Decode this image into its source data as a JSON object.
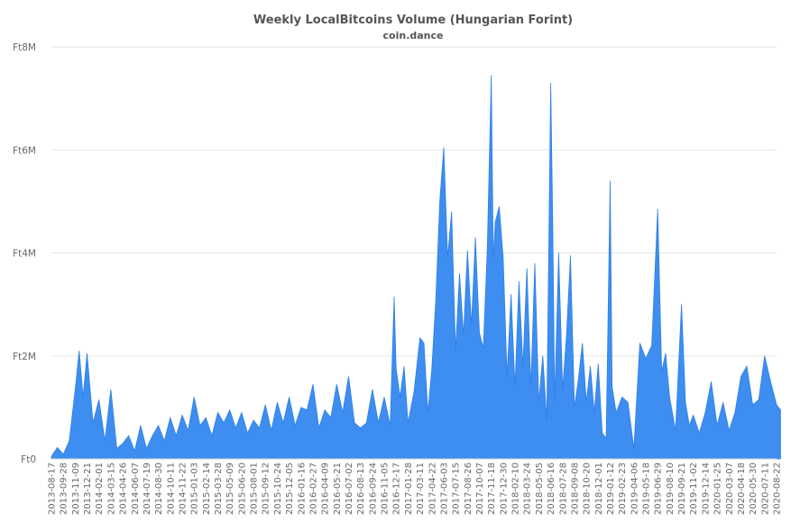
{
  "chart_data": {
    "type": "area",
    "title": "Weekly LocalBitcoins Volume (Hungarian Forint)",
    "subtitle": "coin.dance",
    "xlabel": "",
    "ylabel": "",
    "ylim": [
      0,
      8000000
    ],
    "grid": true,
    "y_ticks": [
      {
        "value": 0,
        "label": "Ft0"
      },
      {
        "value": 2000000,
        "label": "Ft2M"
      },
      {
        "value": 4000000,
        "label": "Ft4M"
      },
      {
        "value": 6000000,
        "label": "Ft6M"
      },
      {
        "value": 8000000,
        "label": "Ft8M"
      }
    ],
    "x_tick_labels": [
      "2013-08-17",
      "2013-09-28",
      "2013-11-09",
      "2013-12-21",
      "2014-02-01",
      "2014-03-15",
      "2014-04-26",
      "2014-06-07",
      "2014-07-19",
      "2014-08-30",
      "2014-10-11",
      "2014-11-22",
      "2015-01-03",
      "2015-02-14",
      "2015-03-28",
      "2015-05-09",
      "2015-06-20",
      "2015-08-01",
      "2015-09-12",
      "2015-10-24",
      "2015-12-05",
      "2016-01-16",
      "2016-02-27",
      "2016-04-09",
      "2016-05-21",
      "2016-07-02",
      "2016-08-13",
      "2016-09-24",
      "2016-11-05",
      "2016-12-17",
      "2017-01-28",
      "2017-03-11",
      "2017-04-22",
      "2017-06-03",
      "2017-07-15",
      "2017-08-26",
      "2017-10-07",
      "2017-11-18",
      "2017-12-30",
      "2018-02-10",
      "2018-03-24",
      "2018-05-05",
      "2018-06-16",
      "2018-07-28",
      "2018-09-08",
      "2018-10-20",
      "2018-12-01",
      "2019-01-12",
      "2019-02-23",
      "2019-04-06",
      "2019-05-18",
      "2019-06-29",
      "2019-08-10",
      "2019-09-21",
      "2019-11-02",
      "2019-12-14",
      "2020-01-25",
      "2020-03-07",
      "2020-04-18",
      "2020-05-30",
      "2020-07-11",
      "2020-08-22"
    ],
    "series": [
      {
        "color": "#3d8ef0",
        "x": [
          "2013-08-17",
          "2013-09-07",
          "2013-09-28",
          "2013-10-19",
          "2013-11-09",
          "2013-11-23",
          "2013-12-07",
          "2013-12-21",
          "2014-01-11",
          "2014-02-01",
          "2014-02-22",
          "2014-03-15",
          "2014-04-05",
          "2014-04-26",
          "2014-05-17",
          "2014-06-07",
          "2014-06-28",
          "2014-07-19",
          "2014-08-09",
          "2014-08-30",
          "2014-09-20",
          "2014-10-11",
          "2014-11-01",
          "2014-11-22",
          "2014-12-13",
          "2015-01-03",
          "2015-01-24",
          "2015-02-14",
          "2015-03-07",
          "2015-03-28",
          "2015-04-18",
          "2015-05-09",
          "2015-05-30",
          "2015-06-20",
          "2015-07-11",
          "2015-08-01",
          "2015-08-22",
          "2015-09-12",
          "2015-10-03",
          "2015-10-24",
          "2015-11-14",
          "2015-12-05",
          "2015-12-26",
          "2016-01-16",
          "2016-02-06",
          "2016-02-27",
          "2016-03-19",
          "2016-04-09",
          "2016-04-30",
          "2016-05-21",
          "2016-06-11",
          "2016-07-02",
          "2016-07-23",
          "2016-08-13",
          "2016-09-03",
          "2016-09-24",
          "2016-10-15",
          "2016-11-05",
          "2016-11-26",
          "2016-12-10",
          "2016-12-17",
          "2016-12-31",
          "2017-01-14",
          "2017-01-28",
          "2017-02-18",
          "2017-03-11",
          "2017-03-25",
          "2017-04-08",
          "2017-04-22",
          "2017-05-06",
          "2017-05-20",
          "2017-06-03",
          "2017-06-17",
          "2017-07-01",
          "2017-07-15",
          "2017-07-29",
          "2017-08-12",
          "2017-08-26",
          "2017-09-09",
          "2017-09-23",
          "2017-10-07",
          "2017-10-21",
          "2017-11-04",
          "2017-11-18",
          "2017-11-25",
          "2017-12-02",
          "2017-12-16",
          "2017-12-30",
          "2018-01-13",
          "2018-01-27",
          "2018-02-10",
          "2018-02-24",
          "2018-03-10",
          "2018-03-24",
          "2018-04-07",
          "2018-04-21",
          "2018-05-05",
          "2018-05-19",
          "2018-06-02",
          "2018-06-16",
          "2018-06-23",
          "2018-06-30",
          "2018-07-14",
          "2018-07-28",
          "2018-08-11",
          "2018-08-25",
          "2018-09-08",
          "2018-09-22",
          "2018-10-06",
          "2018-10-20",
          "2018-11-03",
          "2018-11-17",
          "2018-12-01",
          "2018-12-15",
          "2018-12-29",
          "2019-01-12",
          "2019-01-19",
          "2019-02-02",
          "2019-02-23",
          "2019-03-16",
          "2019-04-06",
          "2019-04-27",
          "2019-05-18",
          "2019-06-08",
          "2019-06-29",
          "2019-07-13",
          "2019-07-27",
          "2019-08-10",
          "2019-08-31",
          "2019-09-21",
          "2019-10-05",
          "2019-10-19",
          "2019-11-02",
          "2019-11-23",
          "2019-12-14",
          "2020-01-04",
          "2020-01-25",
          "2020-02-15",
          "2020-03-07",
          "2020-03-28",
          "2020-04-18",
          "2020-05-09",
          "2020-05-30",
          "2020-06-20",
          "2020-07-11",
          "2020-08-01",
          "2020-08-22",
          "2020-09-05"
        ],
        "values": [
          50000,
          220000,
          90000,
          350000,
          1350000,
          2100000,
          1200000,
          2050000,
          700000,
          1150000,
          350000,
          1350000,
          200000,
          300000,
          450000,
          150000,
          650000,
          200000,
          450000,
          650000,
          350000,
          800000,
          450000,
          850000,
          550000,
          1200000,
          650000,
          800000,
          450000,
          900000,
          700000,
          950000,
          600000,
          900000,
          500000,
          750000,
          600000,
          1050000,
          550000,
          1100000,
          700000,
          1200000,
          650000,
          1000000,
          950000,
          1450000,
          600000,
          950000,
          800000,
          1450000,
          900000,
          1600000,
          700000,
          600000,
          700000,
          1350000,
          700000,
          1200000,
          650000,
          3150000,
          1750000,
          1200000,
          1800000,
          700000,
          1300000,
          2350000,
          2250000,
          900000,
          1750000,
          3100000,
          5000000,
          6050000,
          3900000,
          4800000,
          2100000,
          3600000,
          2400000,
          4050000,
          2600000,
          4300000,
          2450000,
          2150000,
          4100000,
          7450000,
          3900000,
          4600000,
          4900000,
          3900000,
          1600000,
          3200000,
          1400000,
          3450000,
          1800000,
          3700000,
          1400000,
          3800000,
          1100000,
          2000000,
          750000,
          7300000,
          4600000,
          1100000,
          4000000,
          1350000,
          2400000,
          3950000,
          1000000,
          1550000,
          2250000,
          1100000,
          1800000,
          900000,
          1850000,
          500000,
          400000,
          5400000,
          1400000,
          900000,
          1200000,
          1100000,
          200000,
          2250000,
          1950000,
          2200000,
          4850000,
          1700000,
          2050000,
          1200000,
          550000,
          3000000,
          1100000,
          650000,
          850000,
          500000,
          900000,
          1500000,
          650000,
          1100000,
          550000,
          900000,
          1600000,
          1800000,
          1050000,
          1150000,
          2000000,
          1500000,
          1050000,
          950000
        ]
      }
    ]
  }
}
